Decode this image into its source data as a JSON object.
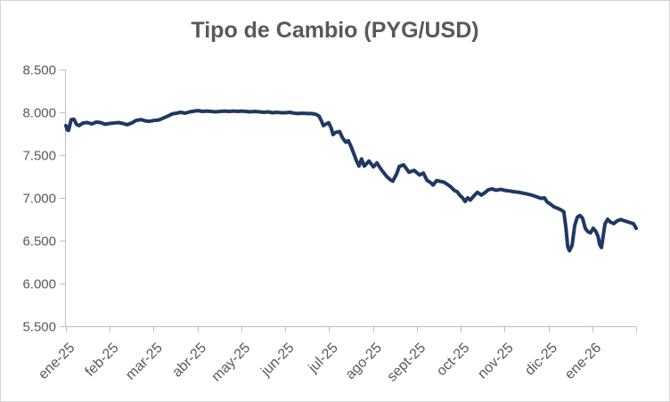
{
  "frame": {
    "background": "#ffffff",
    "border_color": "#d4d4d4"
  },
  "chart_data": {
    "type": "line",
    "title": "Tipo de Cambio (PYG/USD)",
    "xlabel": "",
    "ylabel": "",
    "grid": false,
    "legend_position": "none",
    "title_color": "#595959",
    "axis_color": "#bfbfbf",
    "tick_label_color": "#595959",
    "ylim": [
      5500,
      8500
    ],
    "y_tick_values": [
      8500,
      8000,
      7500,
      7000,
      6500,
      6000,
      5500
    ],
    "y_tick_labels": [
      "8.500",
      "8.000",
      "7.500",
      "7.000",
      "6.500",
      "6.000",
      "5.500"
    ],
    "x_tick_labels": [
      "ene-25",
      "feb-25",
      "mar-25",
      "abr-25",
      "may-25",
      "jun-25",
      "jul-25",
      "ago-25",
      "sept-25",
      "oct-25",
      "nov-25",
      "dic-25",
      "ene-26"
    ],
    "x_unit": "months since start of ene-25 (0 to 13)",
    "xlim_months": [
      0,
      13
    ],
    "series": [
      {
        "name": "PYG/USD",
        "color": "#1f3864",
        "stroke_width": 4,
        "points": [
          [
            0.0,
            7845
          ],
          [
            0.03,
            7795
          ],
          [
            0.06,
            7790
          ],
          [
            0.12,
            7915
          ],
          [
            0.18,
            7920
          ],
          [
            0.24,
            7860
          ],
          [
            0.3,
            7845
          ],
          [
            0.39,
            7875
          ],
          [
            0.49,
            7880
          ],
          [
            0.59,
            7865
          ],
          [
            0.69,
            7885
          ],
          [
            0.79,
            7880
          ],
          [
            0.89,
            7860
          ],
          [
            1.0,
            7870
          ],
          [
            1.1,
            7875
          ],
          [
            1.2,
            7880
          ],
          [
            1.3,
            7870
          ],
          [
            1.4,
            7855
          ],
          [
            1.5,
            7875
          ],
          [
            1.6,
            7905
          ],
          [
            1.71,
            7915
          ],
          [
            1.81,
            7900
          ],
          [
            1.91,
            7895
          ],
          [
            2.01,
            7905
          ],
          [
            2.11,
            7910
          ],
          [
            2.21,
            7930
          ],
          [
            2.32,
            7955
          ],
          [
            2.42,
            7980
          ],
          [
            2.52,
            7990
          ],
          [
            2.62,
            8000
          ],
          [
            2.72,
            7990
          ],
          [
            2.82,
            8005
          ],
          [
            2.93,
            8015
          ],
          [
            3.01,
            8020
          ],
          [
            3.11,
            8010
          ],
          [
            3.21,
            8015
          ],
          [
            3.31,
            8010
          ],
          [
            3.41,
            8005
          ],
          [
            3.51,
            8010
          ],
          [
            3.62,
            8015
          ],
          [
            3.72,
            8010
          ],
          [
            3.82,
            8015
          ],
          [
            3.92,
            8010
          ],
          [
            4.0,
            8015
          ],
          [
            4.1,
            8010
          ],
          [
            4.2,
            8005
          ],
          [
            4.31,
            8010
          ],
          [
            4.41,
            8005
          ],
          [
            4.51,
            8000
          ],
          [
            4.61,
            8005
          ],
          [
            4.71,
            7995
          ],
          [
            4.81,
            8000
          ],
          [
            4.92,
            7995
          ],
          [
            5.0,
            7995
          ],
          [
            5.1,
            8000
          ],
          [
            5.2,
            7990
          ],
          [
            5.3,
            7985
          ],
          [
            5.4,
            7990
          ],
          [
            5.5,
            7985
          ],
          [
            5.61,
            7985
          ],
          [
            5.71,
            7975
          ],
          [
            5.77,
            7955
          ],
          [
            5.83,
            7895
          ],
          [
            5.87,
            7845
          ],
          [
            5.93,
            7862
          ],
          [
            5.99,
            7878
          ],
          [
            6.05,
            7815
          ],
          [
            6.09,
            7740
          ],
          [
            6.15,
            7765
          ],
          [
            6.24,
            7775
          ],
          [
            6.3,
            7705
          ],
          [
            6.38,
            7650
          ],
          [
            6.44,
            7668
          ],
          [
            6.5,
            7600
          ],
          [
            6.56,
            7520
          ],
          [
            6.62,
            7440
          ],
          [
            6.68,
            7372
          ],
          [
            6.74,
            7455
          ],
          [
            6.8,
            7372
          ],
          [
            6.91,
            7430
          ],
          [
            7.01,
            7362
          ],
          [
            7.09,
            7408
          ],
          [
            7.19,
            7330
          ],
          [
            7.31,
            7252
          ],
          [
            7.39,
            7215
          ],
          [
            7.45,
            7195
          ],
          [
            7.54,
            7280
          ],
          [
            7.6,
            7368
          ],
          [
            7.7,
            7385
          ],
          [
            7.82,
            7300
          ],
          [
            7.94,
            7322
          ],
          [
            8.06,
            7268
          ],
          [
            8.15,
            7290
          ],
          [
            8.23,
            7205
          ],
          [
            8.31,
            7180
          ],
          [
            8.37,
            7150
          ],
          [
            8.45,
            7202
          ],
          [
            8.53,
            7193
          ],
          [
            8.61,
            7185
          ],
          [
            8.69,
            7160
          ],
          [
            8.77,
            7130
          ],
          [
            8.86,
            7085
          ],
          [
            8.92,
            7072
          ],
          [
            8.98,
            7030
          ],
          [
            9.04,
            7003
          ],
          [
            9.1,
            6958
          ],
          [
            9.16,
            7000
          ],
          [
            9.22,
            6975
          ],
          [
            9.3,
            7022
          ],
          [
            9.38,
            7065
          ],
          [
            9.47,
            7032
          ],
          [
            9.55,
            7060
          ],
          [
            9.63,
            7095
          ],
          [
            9.71,
            7105
          ],
          [
            9.81,
            7090
          ],
          [
            9.91,
            7100
          ],
          [
            10.01,
            7088
          ],
          [
            10.12,
            7080
          ],
          [
            10.22,
            7072
          ],
          [
            10.32,
            7066
          ],
          [
            10.42,
            7055
          ],
          [
            10.52,
            7045
          ],
          [
            10.62,
            7032
          ],
          [
            10.72,
            7015
          ],
          [
            10.83,
            6995
          ],
          [
            10.91,
            7000
          ],
          [
            10.97,
            6952
          ],
          [
            11.05,
            6925
          ],
          [
            11.13,
            6895
          ],
          [
            11.21,
            6878
          ],
          [
            11.29,
            6858
          ],
          [
            11.35,
            6838
          ],
          [
            11.4,
            6650
          ],
          [
            11.44,
            6430
          ],
          [
            11.48,
            6382
          ],
          [
            11.54,
            6445
          ],
          [
            11.6,
            6680
          ],
          [
            11.66,
            6775
          ],
          [
            11.72,
            6795
          ],
          [
            11.78,
            6760
          ],
          [
            11.84,
            6645
          ],
          [
            11.9,
            6605
          ],
          [
            11.96,
            6592
          ],
          [
            12.02,
            6645
          ],
          [
            12.08,
            6610
          ],
          [
            12.13,
            6550
          ],
          [
            12.17,
            6455
          ],
          [
            12.21,
            6420
          ],
          [
            12.29,
            6695
          ],
          [
            12.35,
            6750
          ],
          [
            12.41,
            6718
          ],
          [
            12.49,
            6700
          ],
          [
            12.57,
            6732
          ],
          [
            12.65,
            6748
          ],
          [
            12.73,
            6732
          ],
          [
            12.84,
            6715
          ],
          [
            12.94,
            6698
          ],
          [
            13.0,
            6645
          ]
        ]
      }
    ]
  }
}
